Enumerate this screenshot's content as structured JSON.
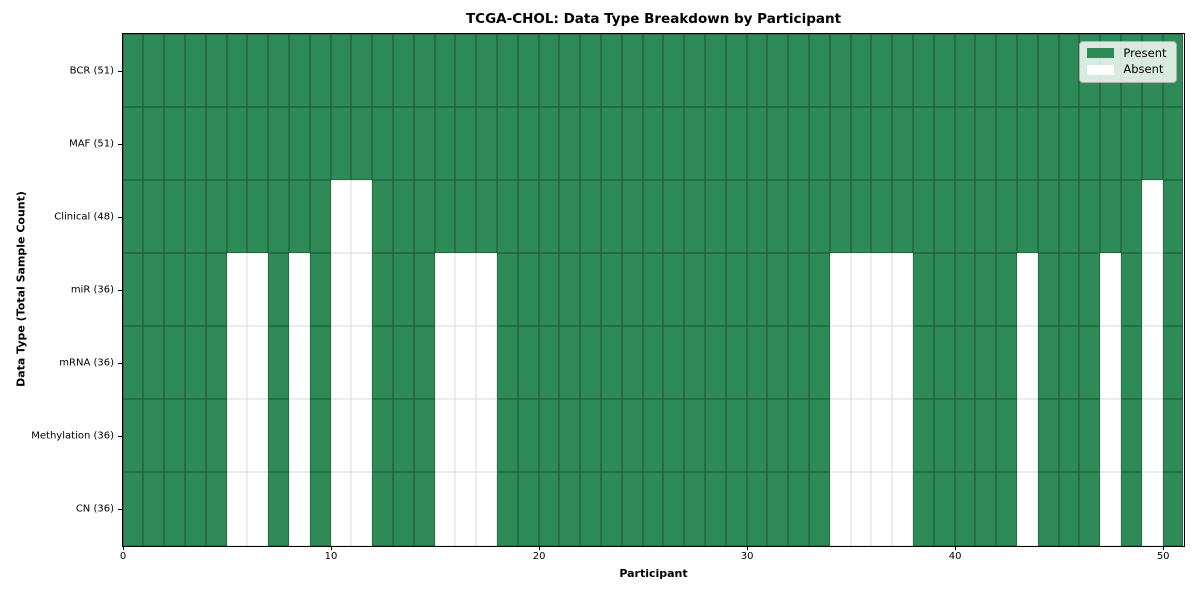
{
  "chart_data": {
    "type": "heatmap",
    "title": "TCGA-CHOL: Data Type Breakdown by Participant",
    "xlabel": "Participant",
    "ylabel": "Data Type (Total Sample Count)",
    "x_range": [
      0,
      51
    ],
    "x_ticks": [
      0,
      10,
      20,
      30,
      40,
      50
    ],
    "n_participants": 51,
    "grid": true,
    "legend_position": "upper right",
    "colors": {
      "present": "#2e8b57",
      "absent": "#ffffff"
    },
    "legend": [
      {
        "label": "Present",
        "color": "#2e8b57"
      },
      {
        "label": "Absent",
        "color": "#ffffff"
      }
    ],
    "rows": [
      {
        "label": "BCR (51)",
        "data_type": "BCR",
        "present_count": 51,
        "absent_participants": []
      },
      {
        "label": "MAF (51)",
        "data_type": "MAF",
        "present_count": 51,
        "absent_participants": []
      },
      {
        "label": "Clinical (48)",
        "data_type": "Clinical",
        "present_count": 48,
        "absent_participants": [
          10,
          11,
          49
        ]
      },
      {
        "label": "miR (36)",
        "data_type": "miR",
        "present_count": 36,
        "absent_participants": [
          5,
          6,
          8,
          10,
          11,
          15,
          16,
          17,
          34,
          35,
          36,
          37,
          43,
          47,
          49
        ]
      },
      {
        "label": "mRNA (36)",
        "data_type": "mRNA",
        "present_count": 36,
        "absent_participants": [
          5,
          6,
          8,
          10,
          11,
          15,
          16,
          17,
          34,
          35,
          36,
          37,
          43,
          47,
          49
        ]
      },
      {
        "label": "Methylation (36)",
        "data_type": "Methylation",
        "present_count": 36,
        "absent_participants": [
          5,
          6,
          8,
          10,
          11,
          15,
          16,
          17,
          34,
          35,
          36,
          37,
          43,
          47,
          49
        ]
      },
      {
        "label": "CN (36)",
        "data_type": "CN",
        "present_count": 36,
        "absent_participants": [
          5,
          6,
          8,
          10,
          11,
          15,
          16,
          17,
          34,
          35,
          36,
          37,
          43,
          47,
          49
        ]
      }
    ]
  }
}
